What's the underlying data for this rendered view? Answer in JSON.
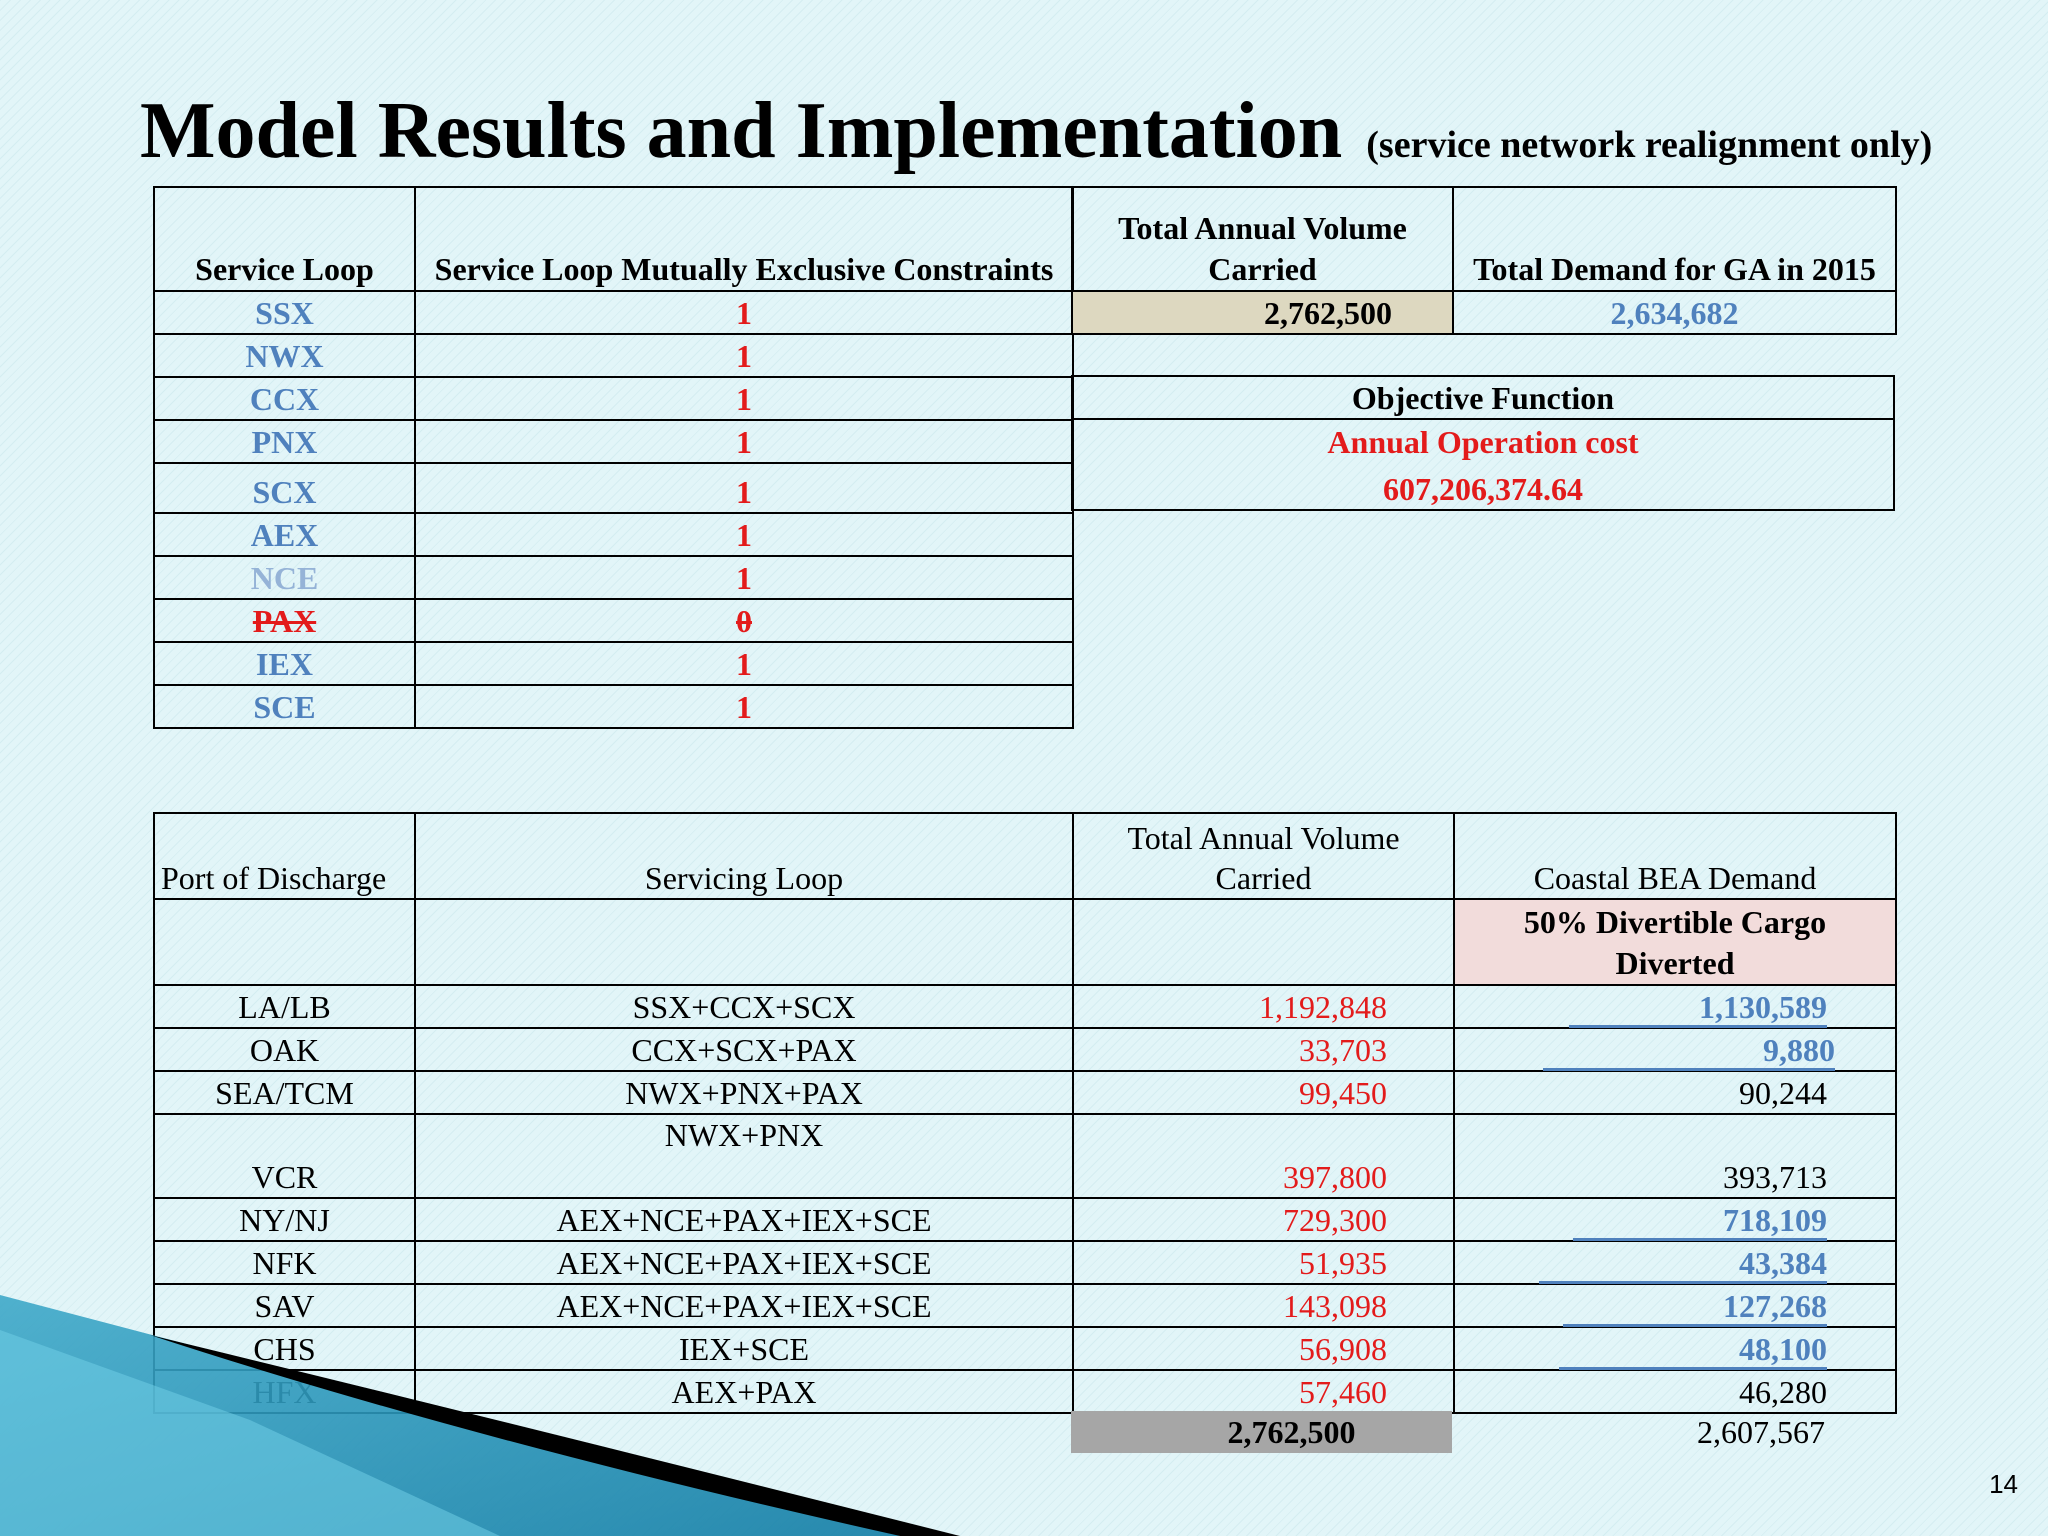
{
  "title": "Model Results and Implementation",
  "subtitle": "(service network realignment only)",
  "top_table": {
    "headers": {
      "service_loop": "Service Loop",
      "constraints": "Service Loop Mutually Exclusive Constraints",
      "volume": "Total Annual  Volume Carried",
      "demand": "Total Demand for GA in 2015"
    },
    "rows": [
      {
        "loop": "SSX",
        "value": "1"
      },
      {
        "loop": "NWX",
        "value": "1"
      },
      {
        "loop": "CCX",
        "value": "1"
      },
      {
        "loop": "PNX",
        "value": "1"
      },
      {
        "loop": "SCX",
        "value": "1"
      },
      {
        "loop": "AEX",
        "value": "1"
      },
      {
        "loop": "NCE",
        "value": "1"
      },
      {
        "loop": "PAX",
        "value": "0"
      },
      {
        "loop": "IEX",
        "value": "1"
      },
      {
        "loop": "SCE",
        "value": "1"
      }
    ],
    "total_volume": "2,762,500",
    "total_demand": "2,634,682"
  },
  "objective": {
    "heading": "Objective Function",
    "label": "Annual Operation cost",
    "value": "607,206,374.64"
  },
  "bottom_table": {
    "headers": {
      "port": "Port of Discharge",
      "loop": "Servicing Loop",
      "volume": "Total Annual Volume Carried",
      "demand": "Coastal BEA Demand"
    },
    "subheader": "50% Divertible Cargo Diverted",
    "rows": [
      {
        "port": "LA/LB",
        "loop": "SSX+CCX+SCX",
        "volume": "1,192,848",
        "demand": "1,130,589"
      },
      {
        "port": "OAK",
        "loop": "CCX+SCX+PAX",
        "volume": "33,703",
        "demand": "9,880"
      },
      {
        "port": "SEA/TCM",
        "loop": "NWX+PNX+PAX",
        "volume": "99,450",
        "demand": "90,244"
      },
      {
        "port": "VCR",
        "loop": "NWX+PNX",
        "volume": "397,800",
        "demand": "393,713"
      },
      {
        "port": "NY/NJ",
        "loop": "AEX+NCE+PAX+IEX+SCE",
        "volume": "729,300",
        "demand": "718,109"
      },
      {
        "port": "NFK",
        "loop": "AEX+NCE+PAX+IEX+SCE",
        "volume": "51,935",
        "demand": "43,384"
      },
      {
        "port": "SAV",
        "loop": "AEX+NCE+PAX+IEX+SCE",
        "volume": "143,098",
        "demand": "127,268"
      },
      {
        "port": "CHS",
        "loop": "IEX+SCE",
        "volume": "56,908",
        "demand": "48,100"
      },
      {
        "port": "HFX",
        "loop": "AEX+PAX",
        "volume": "57,460",
        "demand": "46,280"
      }
    ],
    "total_volume": "2,762,500",
    "total_demand": "2,607,567"
  },
  "page_number": "14",
  "colors": {
    "accent_blue": "#4f81bd",
    "accent_red": "#e31b1b",
    "background": "#e2f5f8"
  }
}
